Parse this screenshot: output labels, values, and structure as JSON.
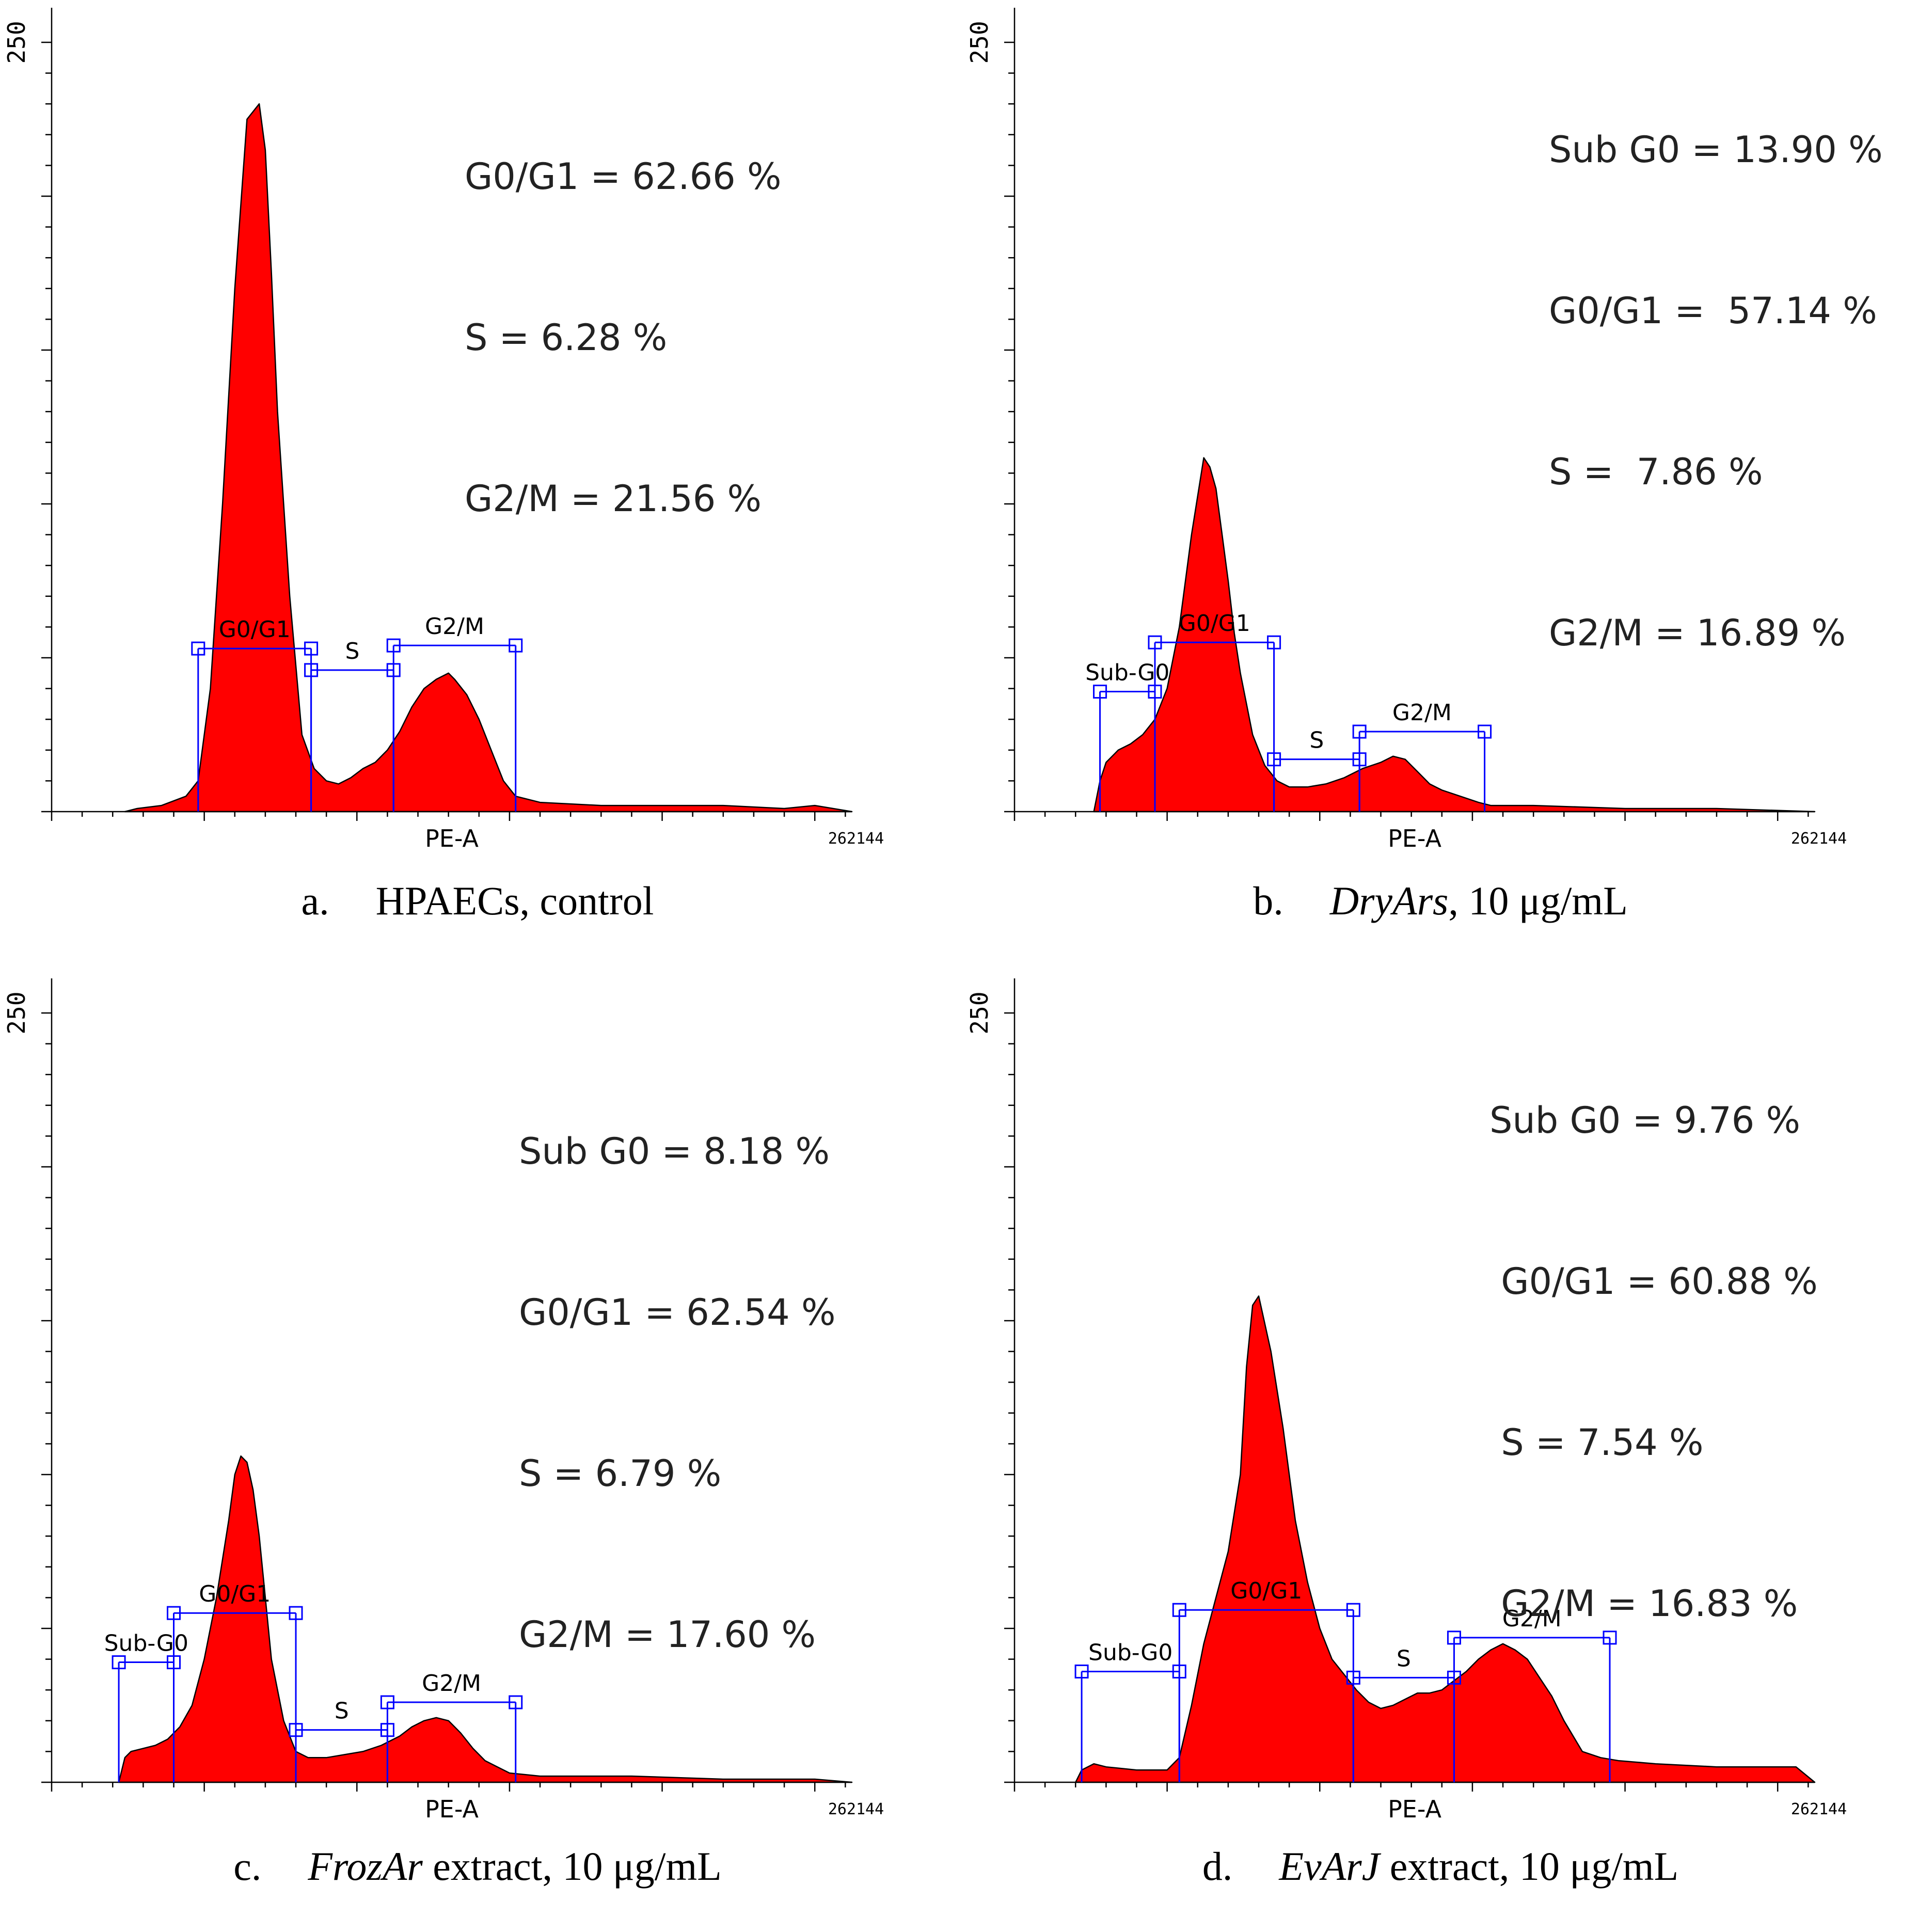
{
  "chart_data": [
    {
      "type": "area",
      "panel": "a",
      "xlabel": "PE-A",
      "ylabel": "",
      "y_tick_label": "250",
      "x_end_label": "262144",
      "xlim": [
        0,
        262144
      ],
      "ylim": [
        0,
        250
      ],
      "caption": {
        "letter": "a.",
        "name": "",
        "text": "HPAECs, control"
      },
      "stats": [
        "G0/G1 = 62.66 %",
        "S = 6.28 %",
        "G2/M = 21.56 %"
      ],
      "gates": [
        {
          "label": "G0/G1",
          "start": 48000,
          "end": 85000,
          "level": 53
        },
        {
          "label": "S",
          "start": 85000,
          "end": 112000,
          "level": 46
        },
        {
          "label": "G2/M",
          "start": 112000,
          "end": 152000,
          "level": 54
        }
      ],
      "histogram": {
        "x": [
          24000,
          28000,
          36000,
          44000,
          48000,
          52000,
          56000,
          60000,
          64000,
          68000,
          70000,
          72000,
          74000,
          78000,
          82000,
          86000,
          90000,
          94000,
          98000,
          102000,
          106000,
          110000,
          114000,
          118000,
          122000,
          126000,
          130000,
          132000,
          136000,
          140000,
          144000,
          148000,
          152000,
          160000,
          180000,
          200000,
          220000,
          240000,
          250000,
          262144
        ],
        "y": [
          0,
          1,
          2,
          5,
          10,
          40,
          100,
          170,
          225,
          230,
          215,
          175,
          130,
          70,
          25,
          14,
          10,
          9,
          11,
          14,
          16,
          20,
          26,
          34,
          40,
          43,
          45,
          43,
          38,
          30,
          20,
          10,
          5,
          3,
          2,
          2,
          2,
          1,
          2,
          0
        ]
      }
    },
    {
      "type": "area",
      "panel": "b",
      "xlabel": "PE-A",
      "ylabel": "",
      "y_tick_label": "250",
      "x_end_label": "262144",
      "xlim": [
        0,
        262144
      ],
      "ylim": [
        0,
        250
      ],
      "caption": {
        "letter": "b.",
        "name": "DryArs",
        "text": ", 10 μg/mL"
      },
      "stats": [
        "Sub G0 = 13.90 %",
        "G0/G1 =  57.14 %",
        "S =  7.86 %",
        "G2/M = 16.89 %"
      ],
      "gates": [
        {
          "label": "Sub-G0",
          "start": 28000,
          "end": 46000,
          "level": 39
        },
        {
          "label": "G0/G1",
          "start": 46000,
          "end": 85000,
          "level": 55
        },
        {
          "label": "S",
          "start": 85000,
          "end": 113000,
          "level": 17
        },
        {
          "label": "G2/M",
          "start": 113000,
          "end": 154000,
          "level": 26
        }
      ],
      "histogram": {
        "x": [
          26000,
          28000,
          30000,
          34000,
          38000,
          42000,
          46000,
          50000,
          54000,
          58000,
          62000,
          64000,
          66000,
          68000,
          70000,
          72000,
          74000,
          78000,
          82000,
          86000,
          90000,
          96000,
          102000,
          108000,
          114000,
          120000,
          124000,
          128000,
          132000,
          136000,
          140000,
          146000,
          152000,
          156000,
          170000,
          200000,
          230000,
          262144
        ],
        "y": [
          0,
          10,
          16,
          20,
          22,
          25,
          30,
          40,
          60,
          90,
          115,
          112,
          105,
          90,
          75,
          58,
          45,
          25,
          15,
          10,
          8,
          8,
          9,
          11,
          14,
          16,
          18,
          17,
          13,
          9,
          7,
          5,
          3,
          2,
          2,
          1,
          1,
          0
        ]
      }
    },
    {
      "type": "area",
      "panel": "c",
      "xlabel": "PE-A",
      "ylabel": "",
      "y_tick_label": "250",
      "x_end_label": "262144",
      "xlim": [
        0,
        262144
      ],
      "ylim": [
        0,
        250
      ],
      "caption": {
        "letter": "c.",
        "name": "FrozAr",
        "text": " extract, 10 μg/mL"
      },
      "stats": [
        "Sub G0 = 8.18 %",
        "G0/G1 = 62.54 %",
        "S = 6.79 %",
        "G2/M = 17.60 %"
      ],
      "gates": [
        {
          "label": "Sub-G0",
          "start": 22000,
          "end": 40000,
          "level": 39
        },
        {
          "label": "G0/G1",
          "start": 40000,
          "end": 80000,
          "level": 55
        },
        {
          "label": "S",
          "start": 80000,
          "end": 110000,
          "level": 17
        },
        {
          "label": "G2/M",
          "start": 110000,
          "end": 152000,
          "level": 26
        }
      ],
      "histogram": {
        "x": [
          22000,
          24000,
          26000,
          30000,
          34000,
          38000,
          42000,
          46000,
          50000,
          54000,
          58000,
          60000,
          62000,
          64000,
          66000,
          68000,
          70000,
          72000,
          76000,
          80000,
          84000,
          90000,
          96000,
          102000,
          108000,
          114000,
          118000,
          122000,
          126000,
          130000,
          134000,
          138000,
          142000,
          146000,
          150000,
          160000,
          190000,
          220000,
          250000,
          262144
        ],
        "y": [
          0,
          8,
          10,
          11,
          12,
          14,
          18,
          25,
          40,
          60,
          85,
          100,
          106,
          104,
          95,
          80,
          60,
          40,
          20,
          10,
          8,
          8,
          9,
          10,
          12,
          15,
          18,
          20,
          21,
          20,
          16,
          11,
          7,
          5,
          3,
          2,
          2,
          1,
          1,
          0
        ]
      }
    },
    {
      "type": "area",
      "panel": "d",
      "xlabel": "PE-A",
      "ylabel": "",
      "y_tick_label": "250",
      "x_end_label": "262144",
      "xlim": [
        0,
        262144
      ],
      "ylim": [
        0,
        250
      ],
      "caption": {
        "letter": "d.",
        "name": "EvArJ",
        "text": " extract, 10 μg/mL"
      },
      "stats": [
        "Sub G0 = 9.76 %",
        " G0/G1 = 60.88 %",
        " S = 7.54 %",
        " G2/M = 16.83 %"
      ],
      "gates": [
        {
          "label": "Sub-G0",
          "start": 22000,
          "end": 54000,
          "level": 36
        },
        {
          "label": "G0/G1",
          "start": 54000,
          "end": 111000,
          "level": 56
        },
        {
          "label": "S",
          "start": 111000,
          "end": 144000,
          "level": 34
        },
        {
          "label": "G2/M",
          "start": 144000,
          "end": 195000,
          "level": 47
        }
      ],
      "histogram": {
        "x": [
          20000,
          22000,
          26000,
          30000,
          40000,
          50000,
          54000,
          58000,
          62000,
          66000,
          70000,
          74000,
          76000,
          78000,
          80000,
          84000,
          88000,
          92000,
          96000,
          100000,
          104000,
          108000,
          112000,
          116000,
          120000,
          124000,
          128000,
          132000,
          136000,
          140000,
          144000,
          148000,
          152000,
          156000,
          160000,
          164000,
          168000,
          172000,
          176000,
          180000,
          186000,
          192000,
          198000,
          210000,
          230000,
          250000,
          256000,
          262144
        ],
        "y": [
          0,
          4,
          6,
          5,
          4,
          4,
          8,
          25,
          45,
          60,
          75,
          100,
          135,
          155,
          158,
          140,
          115,
          85,
          65,
          50,
          40,
          35,
          30,
          26,
          24,
          25,
          27,
          29,
          29,
          30,
          33,
          36,
          40,
          43,
          45,
          43,
          40,
          34,
          28,
          20,
          10,
          8,
          7,
          6,
          5,
          5,
          5,
          0
        ]
      }
    }
  ]
}
